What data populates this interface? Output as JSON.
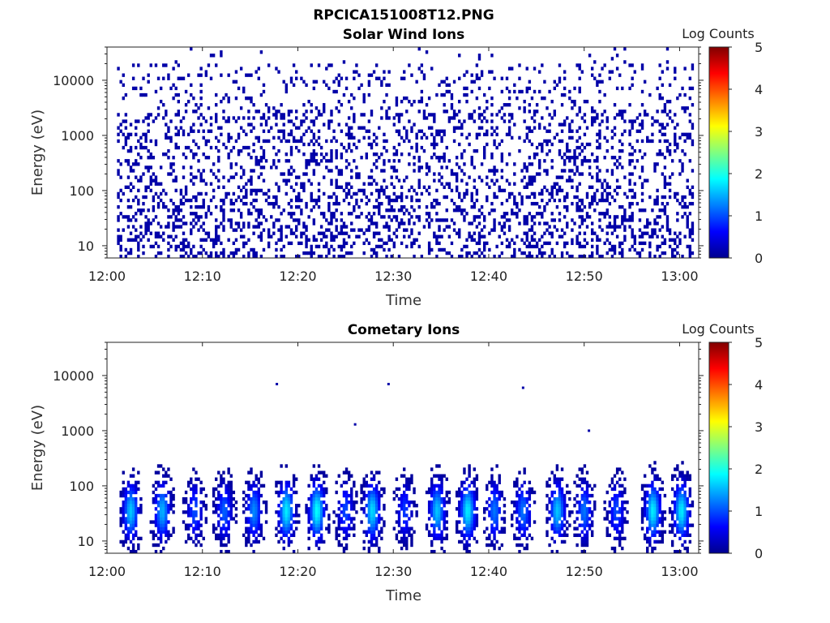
{
  "figure": {
    "suptitle": "RPCICA151008T12.PNG"
  },
  "colorbar": {
    "label": "Log Counts",
    "range": [
      0,
      5
    ],
    "ticks": [
      "0",
      "1",
      "2",
      "3",
      "4",
      "5"
    ],
    "colormap": "jet"
  },
  "chart_data": [
    {
      "type": "heatmap",
      "title": "Solar Wind Ions",
      "xlabel": "Time",
      "ylabel": "Energy (eV)",
      "x_ticks": [
        "12:00",
        "12:10",
        "12:20",
        "12:30",
        "12:40",
        "12:50",
        "13:00"
      ],
      "y_ticks": [
        "10",
        "100",
        "1000",
        "10000"
      ],
      "y_scale": "log",
      "ylim": [
        6,
        40000
      ],
      "xlim_minutes": [
        0,
        62
      ],
      "data_start_minute": 1,
      "data_end_minute": 61.5,
      "value_range": [
        0,
        5
      ],
      "dominant_log_counts": 0.2,
      "pattern": "sparse speckle across all energies, denser vertical streaks below 100 eV"
    },
    {
      "type": "heatmap",
      "title": "Cometary Ions",
      "xlabel": "Time",
      "ylabel": "Energy (eV)",
      "x_ticks": [
        "12:00",
        "12:10",
        "12:20",
        "12:30",
        "12:40",
        "12:50",
        "13:00"
      ],
      "y_ticks": [
        "10",
        "100",
        "1000",
        "10000"
      ],
      "y_scale": "log",
      "ylim": [
        6,
        40000
      ],
      "xlim_minutes": [
        0,
        62
      ],
      "value_range": [
        0,
        5
      ],
      "pattern": "periodic bursts below ~400 eV with peak log counts near 1.5-2",
      "bursts": [
        {
          "minute": 2.5,
          "peak": 1.6
        },
        {
          "minute": 5.8,
          "peak": 1.5
        },
        {
          "minute": 9.2,
          "peak": 1.0
        },
        {
          "minute": 12.3,
          "peak": 1.1
        },
        {
          "minute": 15.4,
          "peak": 1.3
        },
        {
          "minute": 18.8,
          "peak": 1.8
        },
        {
          "minute": 22.0,
          "peak": 1.9
        },
        {
          "minute": 25.0,
          "peak": 1.0
        },
        {
          "minute": 27.8,
          "peak": 1.7
        },
        {
          "minute": 31.2,
          "peak": 0.9
        },
        {
          "minute": 34.6,
          "peak": 1.6
        },
        {
          "minute": 37.8,
          "peak": 1.8
        },
        {
          "minute": 40.6,
          "peak": 1.2
        },
        {
          "minute": 43.6,
          "peak": 1.2
        },
        {
          "minute": 47.2,
          "peak": 1.6
        },
        {
          "minute": 50.0,
          "peak": 1.2
        },
        {
          "minute": 53.4,
          "peak": 1.0
        },
        {
          "minute": 57.2,
          "peak": 1.8
        },
        {
          "minute": 60.2,
          "peak": 1.8
        }
      ],
      "isolated_points": [
        {
          "minute": 17.8,
          "energy_ev": 7000
        },
        {
          "minute": 29.5,
          "energy_ev": 7000
        },
        {
          "minute": 43.6,
          "energy_ev": 6000
        },
        {
          "minute": 26.0,
          "energy_ev": 1300
        },
        {
          "minute": 50.5,
          "energy_ev": 1000
        }
      ]
    }
  ]
}
